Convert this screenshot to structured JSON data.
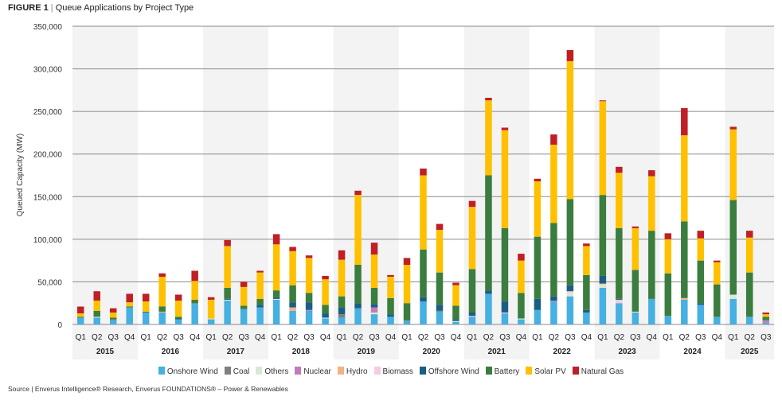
{
  "title": {
    "prefix": "FIGURE 1",
    "sep": "|",
    "text": "Queue Applications by Project Type"
  },
  "source": "Source | Enverus Intelligence® Research, Enverus FOUNDATIONS® – Power & Renewables",
  "chart_data": {
    "type": "bar",
    "stacked": true,
    "title": "Queue Applications by Project Type",
    "xlabel": "",
    "ylabel": "Queued Capacity (MW)",
    "ylim": [
      0,
      350000
    ],
    "yticks": [
      0,
      50000,
      100000,
      150000,
      200000,
      250000,
      300000,
      350000
    ],
    "ytick_labels": [
      "0",
      "50,000",
      "100,000",
      "150,000",
      "200,000",
      "250,000",
      "300,000",
      "350,000"
    ],
    "grid": true,
    "legend_position": "bottom",
    "years": [
      "2015",
      "2016",
      "2017",
      "2018",
      "2019",
      "2020",
      "2021",
      "2022",
      "2023",
      "2024",
      "2025"
    ],
    "categories": [
      "Q1",
      "Q2",
      "Q3",
      "Q4",
      "Q1",
      "Q2",
      "Q3",
      "Q4",
      "Q1",
      "Q2",
      "Q3",
      "Q4",
      "Q1",
      "Q2",
      "Q3",
      "Q4",
      "Q1",
      "Q2",
      "Q3",
      "Q4",
      "Q1",
      "Q2",
      "Q3",
      "Q4",
      "Q1",
      "Q2",
      "Q3",
      "Q4",
      "Q1",
      "Q2",
      "Q3",
      "Q4",
      "Q1",
      "Q2",
      "Q3",
      "Q4",
      "Q1",
      "Q2",
      "Q3",
      "Q4",
      "Q1",
      "Q2",
      "Q3"
    ],
    "series": [
      {
        "name": "Onshore Wind",
        "color": "#45b0e1",
        "values": [
          8000,
          8000,
          5000,
          20000,
          14000,
          14000,
          6000,
          24000,
          6000,
          28000,
          18000,
          20000,
          29000,
          16000,
          16000,
          7000,
          8000,
          19000,
          12000,
          9000,
          4000,
          27000,
          15000,
          3000,
          9000,
          36000,
          13000,
          6000,
          17000,
          27000,
          33000,
          14000,
          43000,
          25000,
          14000,
          30000,
          10000,
          29000,
          23000,
          9000,
          30000,
          9000,
          2000
        ]
      },
      {
        "name": "Coal",
        "color": "#7f7f7f",
        "values": [
          0,
          0,
          1000,
          0,
          0,
          0,
          0,
          1000,
          0,
          0,
          0,
          0,
          0,
          0,
          0,
          0,
          4000,
          0,
          0,
          0,
          1000,
          0,
          1000,
          0,
          0,
          0,
          0,
          0,
          0,
          0,
          0,
          0,
          0,
          0,
          0,
          0,
          0,
          0,
          0,
          0,
          0,
          0,
          0
        ]
      },
      {
        "name": "Others",
        "color": "#d9ead3",
        "values": [
          0,
          1000,
          0,
          0,
          0,
          0,
          0,
          0,
          1000,
          1000,
          0,
          0,
          1000,
          0,
          0,
          1000,
          0,
          0,
          2000,
          0,
          0,
          0,
          0,
          1000,
          0,
          0,
          0,
          1000,
          0,
          0,
          4000,
          0,
          4000,
          0,
          1000,
          0,
          0,
          0,
          0,
          0,
          5000,
          0,
          0
        ]
      },
      {
        "name": "Nuclear",
        "color": "#c27bba",
        "values": [
          0,
          0,
          0,
          0,
          0,
          0,
          0,
          0,
          0,
          0,
          0,
          0,
          0,
          0,
          1000,
          0,
          0,
          0,
          6000,
          0,
          0,
          0,
          0,
          0,
          0,
          0,
          0,
          0,
          0,
          1000,
          0,
          0,
          0,
          0,
          0,
          0,
          0,
          0,
          0,
          0,
          0,
          0,
          3000
        ]
      },
      {
        "name": "Hydro",
        "color": "#f4b183",
        "values": [
          0,
          0,
          0,
          0,
          0,
          1000,
          0,
          0,
          0,
          0,
          0,
          0,
          0,
          4000,
          0,
          0,
          0,
          0,
          0,
          0,
          0,
          0,
          0,
          0,
          0,
          0,
          0,
          0,
          0,
          0,
          0,
          0,
          1000,
          0,
          0,
          0,
          0,
          2000,
          0,
          0,
          0,
          0,
          0
        ]
      },
      {
        "name": "Biomass",
        "color": "#f4cce0",
        "values": [
          0,
          0,
          0,
          0,
          0,
          0,
          0,
          0,
          0,
          0,
          0,
          0,
          0,
          0,
          0,
          0,
          0,
          0,
          0,
          0,
          0,
          0,
          0,
          0,
          1000,
          0,
          1000,
          0,
          0,
          0,
          2000,
          0,
          0,
          4000,
          0,
          0,
          0,
          0,
          0,
          0,
          0,
          0,
          0
        ]
      },
      {
        "name": "Offshore Wind",
        "color": "#1b5e82",
        "values": [
          0,
          0,
          0,
          0,
          0,
          0,
          1000,
          0,
          0,
          1000,
          0,
          3000,
          2000,
          6000,
          9000,
          5000,
          8000,
          6000,
          4000,
          3000,
          0,
          5000,
          7000,
          2000,
          4000,
          4000,
          13000,
          0,
          13000,
          5000,
          7000,
          3000,
          9000,
          1000,
          0,
          0,
          0,
          0,
          2000,
          0,
          0,
          0,
          0
        ]
      },
      {
        "name": "Battery",
        "color": "#3a7d3e",
        "values": [
          1000,
          7000,
          2000,
          1000,
          1000,
          6000,
          2000,
          4000,
          0,
          13000,
          4000,
          7000,
          8000,
          20000,
          11000,
          10000,
          13000,
          45000,
          19000,
          19000,
          20000,
          56000,
          38000,
          16000,
          51000,
          135000,
          86000,
          30000,
          73000,
          86000,
          101000,
          41000,
          95000,
          83000,
          49000,
          80000,
          50000,
          90000,
          50000,
          38000,
          111000,
          52000,
          4000
        ]
      },
      {
        "name": "Solar PV",
        "color": "#ffc000",
        "values": [
          4000,
          12000,
          6000,
          5000,
          12000,
          35000,
          19000,
          22000,
          22000,
          49000,
          22000,
          31000,
          54000,
          40000,
          41000,
          30000,
          43000,
          82000,
          39000,
          25000,
          45000,
          87000,
          50000,
          24000,
          73000,
          88000,
          115000,
          38000,
          65000,
          92000,
          162000,
          34000,
          110000,
          65000,
          49000,
          64000,
          40000,
          101000,
          26000,
          26000,
          83000,
          41000,
          3000
        ]
      },
      {
        "name": "Natural Gas",
        "color": "#c01f25",
        "values": [
          8000,
          11000,
          5000,
          10000,
          9000,
          4000,
          7000,
          12000,
          3000,
          7000,
          6000,
          2000,
          12000,
          5000,
          3000,
          4000,
          11000,
          5000,
          14000,
          2000,
          8000,
          8000,
          7000,
          3000,
          7000,
          3000,
          3000,
          8000,
          3000,
          12000,
          13000,
          3000,
          1000,
          7000,
          2000,
          7000,
          7000,
          32000,
          9000,
          2000,
          3000,
          8000,
          2000
        ]
      }
    ]
  }
}
